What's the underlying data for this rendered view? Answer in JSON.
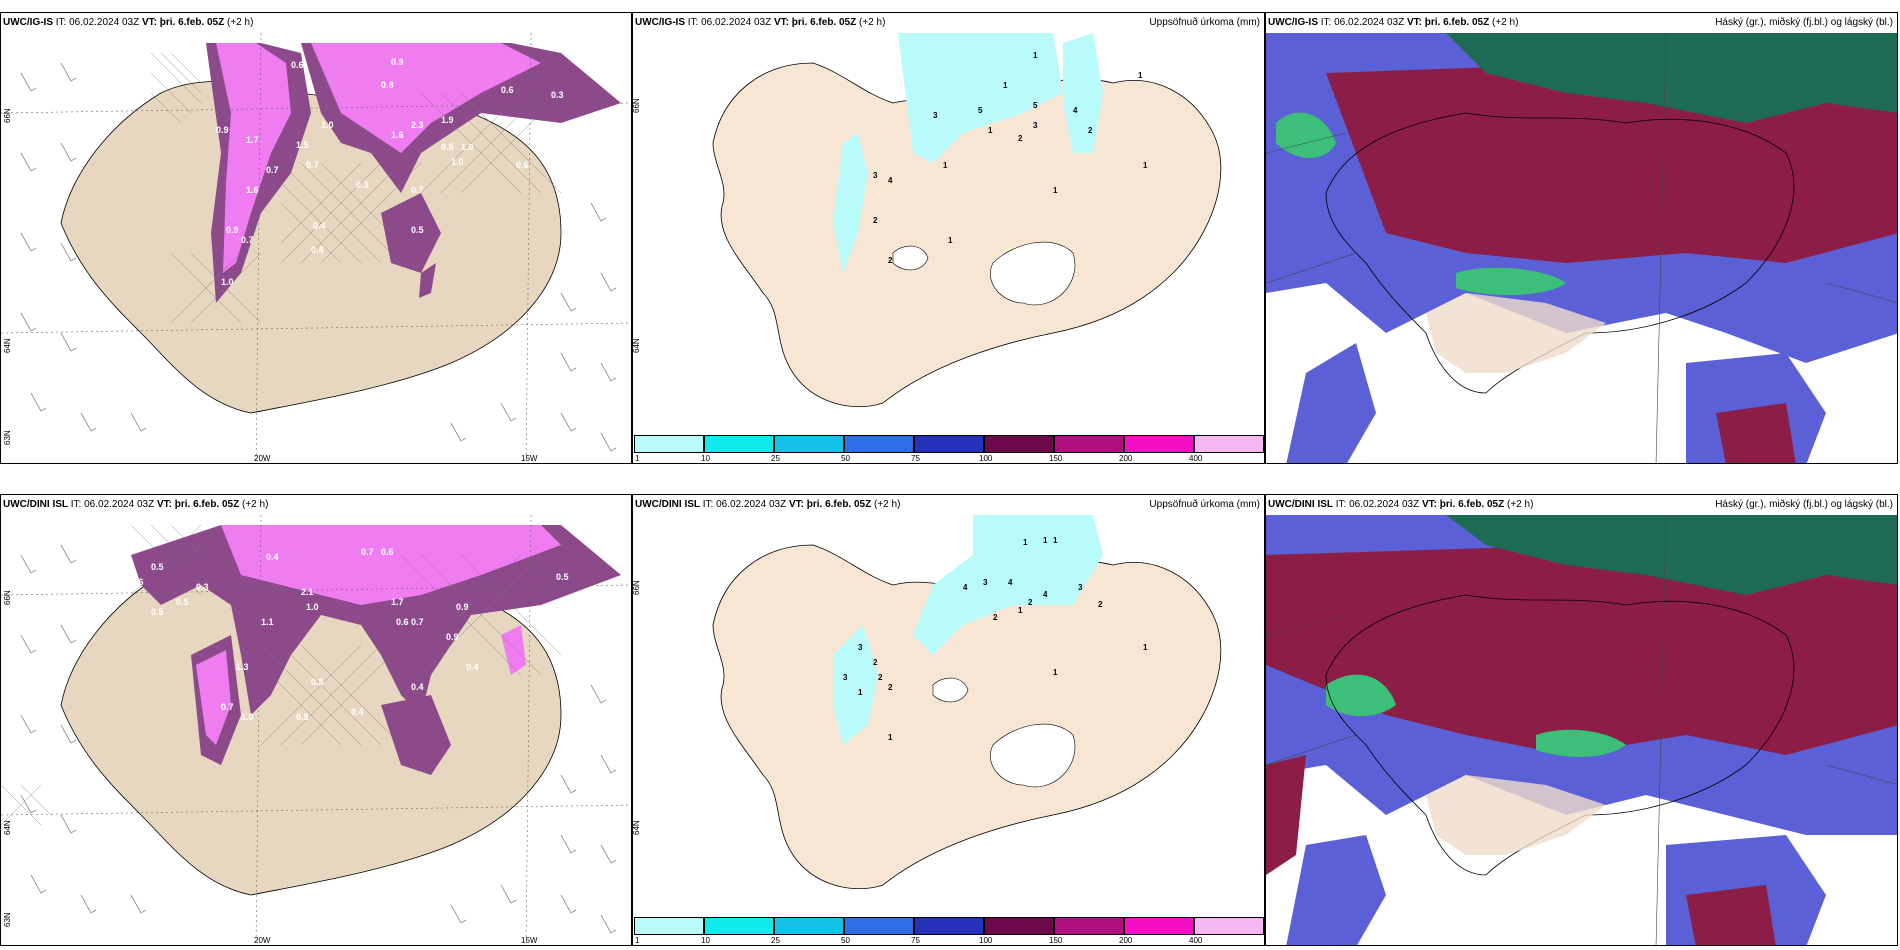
{
  "rows": [
    {
      "model": "UWC/IG-IS",
      "wind": {
        "it_label": "IT:",
        "it": "06.02.2024 03Z",
        "vt_label": "VT:",
        "vt": "þri. 6.feb. 05Z",
        "lead": "(+2 h)",
        "lat_labels": [
          "66N",
          "64N",
          "63N"
        ],
        "lon_labels": [
          "20W",
          "15W"
        ],
        "values": [
          "0.6",
          "0.9",
          "0.3",
          "0.8",
          "1.0",
          "0.6",
          "0.3",
          "1.7",
          "1.5",
          "2.3",
          "1.0",
          "1.6",
          "1.9",
          "0.5",
          "1.0",
          "0.9",
          "0.7",
          "1.6",
          "0.3",
          "0.6",
          "0.7",
          "0.4",
          "0.5",
          "0.9",
          "0.7",
          "0.7",
          "0.4",
          "1.0"
        ]
      },
      "precip": {
        "it_label": "IT:",
        "it": "06.02.2024 03Z",
        "vt_label": "VT:",
        "vt": "þri. 6.feb. 05Z",
        "lead": "(+2 h)",
        "title": "Uppsöfnuð úrkoma (mm)",
        "lat_labels": [
          "66N",
          "64N"
        ],
        "values": [
          "1",
          "1",
          "3",
          "5",
          "5",
          "4",
          "2",
          "1",
          "3",
          "2",
          "1",
          "3",
          "4",
          "2",
          "1",
          "2",
          "1",
          "1",
          "1"
        ]
      },
      "cloud": {
        "it_label": "IT:",
        "it": "06.02.2024 03Z",
        "vt_label": "VT:",
        "vt": "þri. 6.feb. 05Z",
        "lead": "(+2 h)",
        "title": "Háský (gr.), miðský (fj.bl.) og lágský (bl.)"
      }
    },
    {
      "model": "UWC/DINI ISL",
      "wind": {
        "it_label": "IT:",
        "it": "06.02.2024 03Z",
        "vt_label": "VT:",
        "vt": "þri. 6.feb. 05Z",
        "lead": "(+2 h)",
        "lat_labels": [
          "66N",
          "64N",
          "63N"
        ],
        "lon_labels": [
          "20W",
          "15W"
        ],
        "values": [
          "0.5",
          "0.4",
          "0.7",
          "0.6",
          "0.3",
          "0.5",
          "0.6",
          "2.1",
          "1.7",
          "0.9",
          "1.0",
          "1.3",
          "0.7",
          "0.5",
          "0.4",
          "0.4",
          "0.5",
          "0.6",
          "0.5",
          "0.4",
          "0.7",
          "1.0",
          "0.5",
          "1.1",
          "0.9"
        ]
      },
      "precip": {
        "it_label": "IT:",
        "it": "06.02.2024 03Z",
        "vt_label": "VT:",
        "vt": "þri. 6.feb. 05Z",
        "lead": "(+2 h)",
        "title": "Uppsöfnuð úrkoma (mm)",
        "lat_labels": [
          "66N",
          "64N"
        ],
        "values": [
          "1",
          "1",
          "1",
          "4",
          "3",
          "4",
          "3",
          "2",
          "2",
          "4",
          "2",
          "1",
          "3",
          "2",
          "1",
          "2",
          "3",
          "2",
          "1",
          "1",
          "1"
        ]
      },
      "cloud": {
        "it_label": "IT:",
        "it": "06.02.2024 03Z",
        "vt_label": "VT:",
        "vt": "þri. 6.feb. 05Z",
        "lead": "(+2 h)",
        "title": "Háský (gr.), miðský (fj.bl.) og lágský (bl.)"
      }
    }
  ],
  "colorbar": {
    "ticks": [
      "1",
      "10",
      "25",
      "50",
      "75",
      "100",
      "150",
      "200",
      "400"
    ],
    "colors": [
      "#b9fbfb",
      "#10eaea",
      "#12c2e8",
      "#2f6fe6",
      "#2431b8",
      "#6c0a4c",
      "#b0107f",
      "#f20fc4",
      "#f6b6f2"
    ]
  },
  "colors": {
    "land": "#f7e6d4",
    "wind_land": "#e8d7c0",
    "precip_light": "#b9fbfb",
    "precip_magenta": "#f07cf2",
    "precip_purple": "#8c4a8a",
    "cloud_high": "#1e6b55",
    "cloud_mid": "#8c1d46",
    "cloud_low": "#5b60d6",
    "cloud_green": "#3cbf78"
  }
}
